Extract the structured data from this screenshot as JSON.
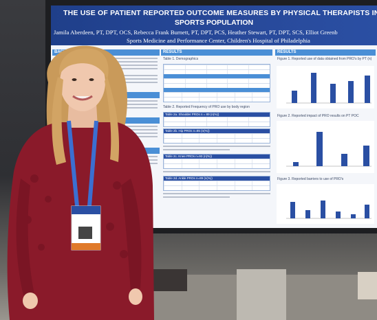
{
  "poster": {
    "title_line1": "THE USE OF PATIENT REPORTED OUTCOME MEASURES BY PHYSICAL THERAPISTS IN THE",
    "title_line2": "SPORTS POPULATION",
    "authors": "Jamila Aberdeen, PT, DPT, OCS, Rebecca Frank Burnett, PT, DPT, PCS, Heather Stewart, PT, DPT, SCS, Elliot Greenb",
    "affiliation": "Sports Medicine and Performance Center, Children's Hospital of Philadelphia",
    "sections": {
      "background": "BACKG",
      "results_mid": "RESULTS",
      "results_right": "RESULTS"
    },
    "table1_caption": "Table 1. Demographics",
    "table2_caption": "Table 2. Reported Frequency of PRO use by body region",
    "table2a": "Table 2a. Shoulder PROs n = 89 (n(%))",
    "table2b": "Table 2b. Hip PROs n=85 (n(%))",
    "table2c": "Table 2c. Knee PROs n=93 (n(%))",
    "table2d": "Table 2d. Ankle PROs n=89 (n(%))",
    "figure1_caption": "Figure 1. Reported use of data obtained from PRO's by PT (n)",
    "figure2_caption": "Figure 2. Reported impact of PRO results on PT POC",
    "figure3_caption": "Figure 3. Reported barriers to use of PRO's"
  },
  "colors": {
    "poster_header": "#28499a",
    "section_bar": "#4a8fd6",
    "bar": "#2a4fa3",
    "sweater": "#8a1a2a",
    "lanyard": "#3b6fd1",
    "hair": "#c99a5a"
  }
}
